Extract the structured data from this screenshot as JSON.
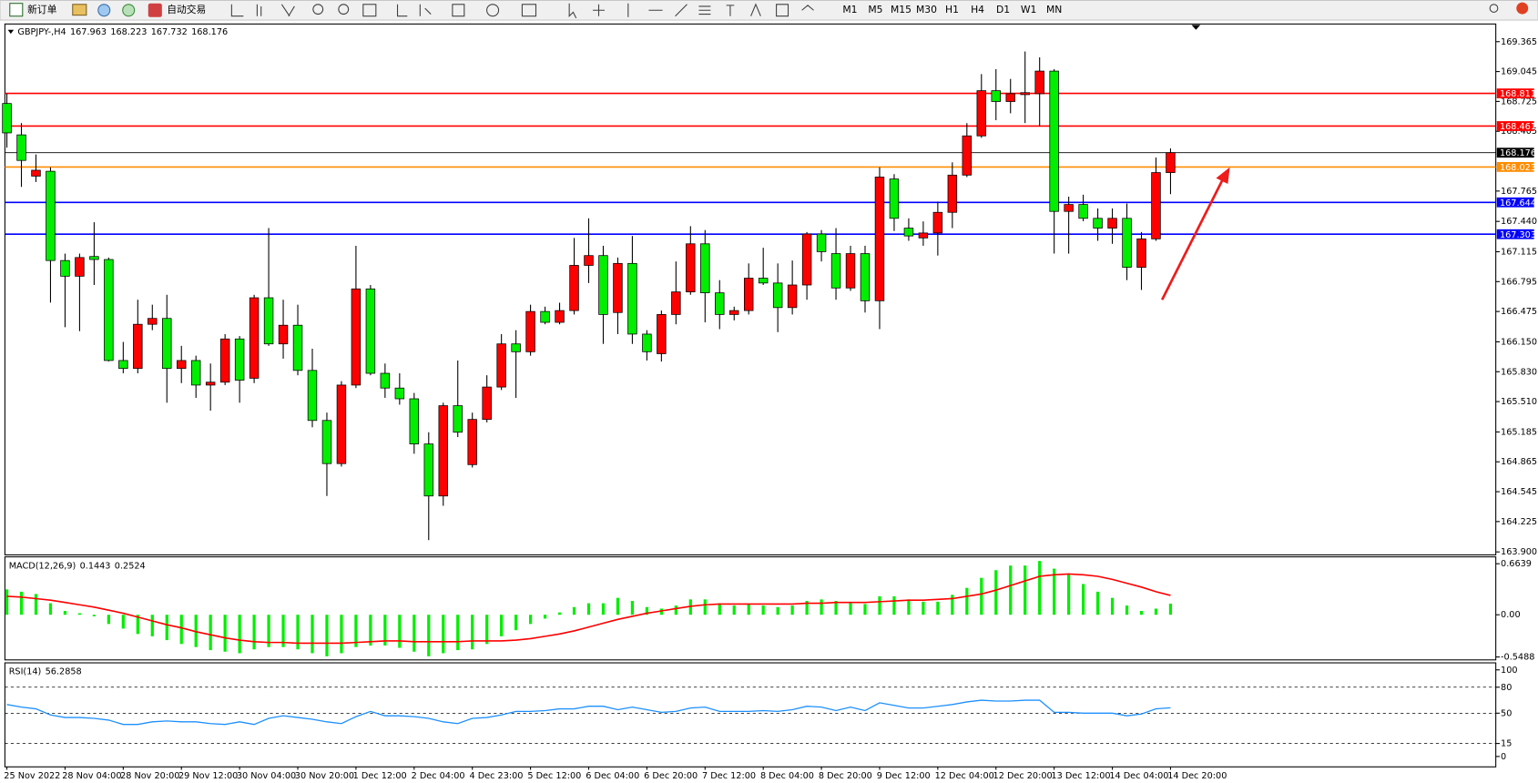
{
  "toolbar": {
    "new_order": "新订单",
    "auto_trading": "自动交易",
    "timeframes": [
      "M1",
      "M5",
      "M15",
      "M30",
      "H1",
      "H4",
      "D1",
      "W1",
      "MN"
    ]
  },
  "chart_data": [
    {
      "type": "candlestick",
      "title": "GBPJPY-,H4",
      "categories": [
        "25 Nov 2022",
        null,
        null,
        null,
        "28 Nov 04:00",
        null,
        null,
        null,
        "28 Nov 20:00",
        null,
        null,
        null,
        "29 Nov 12:00",
        null,
        null,
        null,
        "30 Nov 04:00",
        null,
        null,
        null,
        "30 Nov 20:00",
        null,
        null,
        null,
        "1 Dec 12:00",
        null,
        null,
        null,
        "2 Dec 04:00",
        null,
        null,
        null,
        "4 Dec 23:00",
        null,
        null,
        null,
        "5 Dec 12:00",
        null,
        null,
        null,
        "6 Dec 04:00",
        null,
        null,
        null,
        "6 Dec 20:00",
        null,
        null,
        null,
        "7 Dec 12:00",
        null,
        null,
        null,
        "8 Dec 04:00",
        null,
        null,
        null,
        "8 Dec 20:00",
        null,
        null,
        null,
        "9 Dec 12:00",
        null,
        null,
        null,
        "12 Dec 04:00",
        null,
        null,
        null,
        "12 Dec 20:00",
        null,
        null,
        null,
        "13 Dec 12:00",
        null,
        null,
        null,
        "14 Dec 04:00",
        null,
        null,
        null,
        "14 Dec 20:00"
      ],
      "open": [
        168.703,
        168.367,
        167.925,
        167.977,
        167.021,
        166.853,
        167.064,
        167.032,
        165.95,
        165.865,
        166.338,
        166.401,
        165.865,
        165.95,
        165.687,
        165.718,
        166.181,
        165.76,
        166.622,
        166.128,
        166.328,
        165.844,
        165.308,
        164.846,
        165.687,
        166.717,
        165.813,
        165.655,
        165.54,
        165.056,
        164.499,
        165.466,
        164.835,
        165.319,
        165.666,
        166.128,
        166.044,
        166.475,
        166.359,
        166.485,
        166.969,
        167.074,
        166.464,
        166.99,
        166.233,
        166.023,
        166.443,
        166.685,
        167.2,
        166.675,
        166.443,
        166.485,
        166.832,
        166.78,
        166.517,
        166.759,
        167.305,
        167.095,
        166.727,
        167.095,
        166.59,
        167.894,
        167.368,
        167.263,
        167.316,
        167.537,
        167.936,
        168.356,
        168.84,
        168.724,
        168.798,
        168.808,
        169.05,
        167.547,
        167.621,
        167.473,
        167.368,
        167.473,
        166.948,
        167.253,
        167.963
      ],
      "high": [
        168.808,
        168.493,
        168.157,
        168.02,
        167.095,
        167.095,
        167.431,
        167.053,
        166.149,
        166.601,
        166.548,
        166.654,
        166.107,
        166.002,
        165.918,
        166.233,
        166.212,
        166.654,
        167.368,
        166.601,
        166.548,
        166.076,
        165.392,
        165.729,
        167.179,
        166.759,
        165.918,
        165.813,
        165.603,
        165.182,
        165.498,
        165.95,
        165.392,
        165.792,
        166.233,
        166.275,
        166.548,
        166.527,
        166.569,
        167.263,
        167.473,
        167.179,
        167.053,
        167.284,
        166.275,
        166.485,
        167.011,
        167.389,
        167.347,
        166.811,
        166.527,
        166.99,
        167.158,
        166.99,
        167.021,
        167.326,
        167.347,
        167.368,
        167.179,
        167.179,
        168.02,
        167.946,
        167.473,
        167.44,
        167.652,
        168.073,
        168.493,
        169.018,
        169.071,
        168.966,
        169.26,
        169.197,
        169.071,
        167.705,
        167.726,
        167.579,
        167.579,
        167.631,
        167.326,
        168.125,
        168.223
      ],
      "low": [
        168.23,
        167.81,
        167.862,
        166.57,
        166.307,
        166.265,
        166.759,
        165.94,
        165.813,
        165.813,
        166.275,
        165.498,
        165.708,
        165.55,
        165.413,
        165.687,
        165.498,
        165.708,
        166.107,
        165.97,
        165.792,
        165.235,
        164.499,
        164.814,
        165.655,
        165.792,
        165.55,
        165.477,
        164.951,
        164.026,
        164.394,
        165.13,
        164.804,
        165.287,
        165.634,
        165.55,
        166.002,
        166.338,
        166.338,
        166.443,
        166.78,
        166.128,
        166.233,
        166.128,
        165.95,
        165.939,
        166.338,
        166.654,
        166.359,
        166.286,
        166.38,
        166.443,
        166.759,
        166.254,
        166.443,
        166.601,
        167.011,
        166.601,
        166.696,
        166.464,
        166.286,
        167.337,
        167.232,
        167.179,
        167.074,
        167.368,
        167.915,
        168.335,
        168.524,
        168.598,
        168.493,
        168.461,
        167.095,
        167.095,
        167.442,
        167.232,
        167.2,
        166.811,
        166.706,
        167.232,
        167.732
      ],
      "close": [
        168.388,
        168.093,
        167.988,
        167.021,
        166.853,
        167.053,
        167.032,
        165.95,
        165.865,
        166.338,
        166.401,
        165.865,
        165.95,
        165.687,
        165.718,
        166.181,
        165.739,
        166.622,
        166.128,
        166.328,
        165.844,
        165.308,
        164.846,
        165.687,
        166.717,
        165.813,
        165.655,
        165.54,
        165.056,
        164.499,
        165.466,
        165.182,
        165.319,
        165.666,
        166.128,
        166.044,
        166.475,
        166.359,
        166.485,
        166.969,
        167.074,
        166.443,
        166.99,
        166.233,
        166.044,
        166.443,
        166.685,
        167.2,
        166.675,
        166.443,
        166.485,
        166.832,
        166.78,
        166.517,
        166.759,
        167.305,
        167.116,
        166.727,
        167.095,
        166.59,
        167.915,
        167.473,
        167.284,
        167.316,
        167.537,
        167.936,
        168.356,
        168.84,
        168.724,
        168.808,
        168.819,
        169.05,
        167.547,
        167.621,
        167.473,
        167.368,
        167.473,
        166.948,
        167.253,
        167.963,
        168.176
      ],
      "up_color": "#ff0000",
      "down_color": "#00ee00",
      "last_price_color": "#000000",
      "hlines": [
        {
          "value": 168.811,
          "color": "#ff0000"
        },
        {
          "value": 168.461,
          "color": "#ff0000"
        },
        {
          "value": 168.023,
          "color": "#ff8c00"
        },
        {
          "value": 167.644,
          "color": "#0000ff"
        },
        {
          "value": 167.303,
          "color": "#0000ff"
        }
      ],
      "ylim": [
        163.868,
        169.544
      ],
      "yticks": [
        169.365,
        169.045,
        168.725,
        168.405,
        167.765,
        {
          "value": 167.44,
          "label": "167.440"
        },
        167.115,
        166.795,
        166.475,
        {
          "value": 166.15,
          "label": "166.150"
        },
        {
          "value": 165.83,
          "label": "165.830"
        },
        {
          "value": 165.51,
          "label": "165.510"
        },
        165.185,
        164.865,
        164.545,
        164.225,
        {
          "value": 163.9,
          "label": "163.900"
        }
      ]
    },
    {
      "type": "macd",
      "title": "MACD(12,26,9)",
      "histogram": [
        0.33,
        0.3,
        0.27,
        0.15,
        0.05,
        0.02,
        -0.02,
        -0.12,
        -0.18,
        -0.25,
        -0.28,
        -0.33,
        -0.38,
        -0.42,
        -0.46,
        -0.48,
        -0.5,
        -0.45,
        -0.42,
        -0.42,
        -0.45,
        -0.5,
        -0.54,
        -0.5,
        -0.42,
        -0.4,
        -0.4,
        -0.43,
        -0.48,
        -0.54,
        -0.5,
        -0.46,
        -0.45,
        -0.38,
        -0.28,
        -0.2,
        -0.12,
        -0.05,
        0.03,
        0.1,
        0.15,
        0.15,
        0.22,
        0.18,
        0.1,
        0.08,
        0.12,
        0.2,
        0.2,
        0.15,
        0.12,
        0.14,
        0.12,
        0.1,
        0.12,
        0.18,
        0.2,
        0.18,
        0.16,
        0.14,
        0.24,
        0.24,
        0.2,
        0.17,
        0.17,
        0.26,
        0.35,
        0.48,
        0.58,
        0.64,
        0.64,
        0.7,
        0.6,
        0.52,
        0.4,
        0.3,
        0.22,
        0.12,
        0.05,
        0.08,
        0.1443
      ],
      "signal": [
        0.24,
        0.23,
        0.21,
        0.19,
        0.16,
        0.13,
        0.1,
        0.06,
        0.02,
        -0.03,
        -0.08,
        -0.13,
        -0.17,
        -0.22,
        -0.26,
        -0.3,
        -0.33,
        -0.35,
        -0.36,
        -0.36,
        -0.37,
        -0.37,
        -0.37,
        -0.37,
        -0.36,
        -0.35,
        -0.34,
        -0.34,
        -0.35,
        -0.35,
        -0.35,
        -0.35,
        -0.34,
        -0.34,
        -0.34,
        -0.33,
        -0.31,
        -0.28,
        -0.25,
        -0.21,
        -0.16,
        -0.11,
        -0.06,
        -0.02,
        0.02,
        0.05,
        0.08,
        0.11,
        0.13,
        0.14,
        0.14,
        0.14,
        0.14,
        0.14,
        0.14,
        0.15,
        0.15,
        0.16,
        0.16,
        0.16,
        0.17,
        0.18,
        0.19,
        0.19,
        0.2,
        0.21,
        0.24,
        0.27,
        0.32,
        0.38,
        0.44,
        0.5,
        0.52,
        0.53,
        0.52,
        0.5,
        0.46,
        0.41,
        0.36,
        0.3,
        0.2524
      ],
      "histogram_color": "#00ee00",
      "signal_color": "#ff0000",
      "ylim": [
        -0.587,
        0.7405
      ],
      "yticks": [
        0.6639,
        {
          "value": 0,
          "label": "0.00"
        },
        -0.5488
      ]
    },
    {
      "type": "rsi",
      "title": "RSI(14)",
      "values": [
        60,
        57,
        55,
        48,
        45,
        45,
        44,
        42,
        37,
        37,
        40,
        41,
        40,
        40,
        38,
        37,
        40,
        37,
        44,
        47,
        45,
        43,
        40,
        38,
        46,
        52,
        47,
        47,
        46,
        44,
        40,
        38,
        44,
        45,
        48,
        52,
        52,
        53,
        55,
        55,
        58,
        58,
        54,
        57,
        54,
        51,
        52,
        56,
        57,
        52,
        52,
        52,
        53,
        52,
        54,
        58,
        57,
        53,
        57,
        53,
        62,
        59,
        56,
        56,
        58,
        60,
        63,
        65,
        64,
        64,
        65,
        65,
        51,
        51,
        50,
        50,
        50,
        47,
        49,
        55,
        56.2858
      ],
      "color": "#1e90ff",
      "levels": [
        80,
        50,
        15
      ],
      "ylim": [
        -12,
        107
      ],
      "yticks": [
        100,
        80,
        50,
        15,
        0
      ]
    }
  ]
}
